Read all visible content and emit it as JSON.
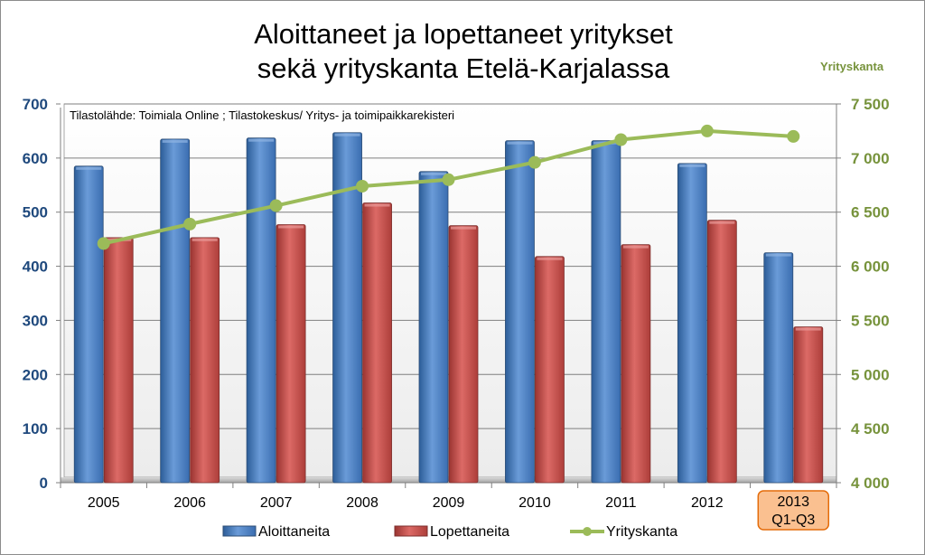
{
  "colors": {
    "started": "#4f81bd",
    "ended": "#c0504d",
    "stock": "#9bbb59",
    "left_axis_text": "#1f497d",
    "right_axis_text": "#77933c",
    "highlight_fill": "#fac090",
    "highlight_border": "#e46c0a"
  },
  "chart_data": {
    "type": "bar",
    "title_lines": [
      "Aloittaneet ja lopettaneet yritykset",
      "sekä yrityskanta Etelä-Karjalassa"
    ],
    "source_note": "Tilastolähde:  Toimiala Online ; Tilastokeskus/ Yritys- ja toimipaikkarekisteri",
    "y2label": "Yrityskanta",
    "categories": [
      "2005",
      "2006",
      "2007",
      "2008",
      "2009",
      "2010",
      "2011",
      "2012",
      "2013 Q1-Q3"
    ],
    "category_lines": [
      [
        "2005"
      ],
      [
        "2006"
      ],
      [
        "2007"
      ],
      [
        "2008"
      ],
      [
        "2009"
      ],
      [
        "2010"
      ],
      [
        "2011"
      ],
      [
        "2012"
      ],
      [
        "2013",
        "Q1-Q3"
      ]
    ],
    "highlighted_category": "2013 Q1-Q3",
    "ylim": [
      0,
      700
    ],
    "yticks": [
      0,
      100,
      200,
      300,
      400,
      500,
      600,
      700
    ],
    "ytick_labels": [
      "0",
      "100",
      "200",
      "300",
      "400",
      "500",
      "600",
      "700"
    ],
    "y2lim": [
      4000,
      7500
    ],
    "y2ticks": [
      4000,
      4500,
      5000,
      5500,
      6000,
      6500,
      7000,
      7500
    ],
    "y2tick_labels": [
      "4 000",
      "4 500",
      "5 000",
      "5 500",
      "6 000",
      "6 500",
      "7 000",
      "7 500"
    ],
    "grid": true,
    "legend_position": "bottom",
    "series": [
      {
        "name": "Aloittaneita",
        "type": "bar",
        "axis": "left",
        "values": [
          585,
          635,
          637,
          647,
          575,
          632,
          632,
          590,
          425
        ]
      },
      {
        "name": "Lopettaneita",
        "type": "bar",
        "axis": "left",
        "values": [
          453,
          453,
          477,
          517,
          475,
          418,
          440,
          485,
          288
        ]
      },
      {
        "name": "Yrityskanta",
        "type": "line",
        "axis": "right",
        "values": [
          6210,
          6390,
          6560,
          6740,
          6800,
          6960,
          7170,
          7250,
          7200
        ]
      }
    ]
  }
}
